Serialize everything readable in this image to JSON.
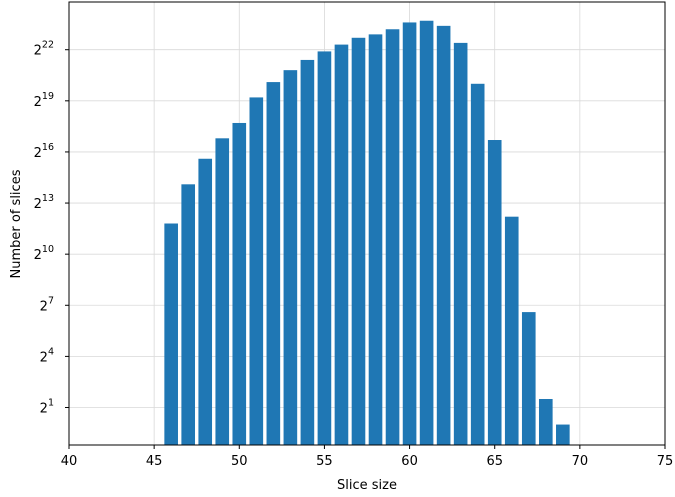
{
  "chart_data": {
    "type": "bar",
    "xlabel": "Slice size",
    "ylabel": "Number of slices",
    "xlim": [
      40,
      75
    ],
    "y_scale": "log2",
    "ylim_exponent": [
      -1.2,
      24.8
    ],
    "grid": true,
    "bar_color": "#1f77b4",
    "x_ticks": [
      "40",
      "45",
      "50",
      "55",
      "60",
      "65",
      "70",
      "75"
    ],
    "y_ticks": [
      {
        "base": "2",
        "exp": "1"
      },
      {
        "base": "2",
        "exp": "4"
      },
      {
        "base": "2",
        "exp": "7"
      },
      {
        "base": "2",
        "exp": "10"
      },
      {
        "base": "2",
        "exp": "13"
      },
      {
        "base": "2",
        "exp": "16"
      },
      {
        "base": "2",
        "exp": "19"
      },
      {
        "base": "2",
        "exp": "22"
      }
    ],
    "bars": [
      {
        "x": 46,
        "y_exp": 11.8
      },
      {
        "x": 47,
        "y_exp": 14.1
      },
      {
        "x": 48,
        "y_exp": 15.6
      },
      {
        "x": 49,
        "y_exp": 16.8
      },
      {
        "x": 50,
        "y_exp": 17.7
      },
      {
        "x": 51,
        "y_exp": 19.2
      },
      {
        "x": 52,
        "y_exp": 20.1
      },
      {
        "x": 53,
        "y_exp": 20.8
      },
      {
        "x": 54,
        "y_exp": 21.4
      },
      {
        "x": 55,
        "y_exp": 21.9
      },
      {
        "x": 56,
        "y_exp": 22.3
      },
      {
        "x": 57,
        "y_exp": 22.7
      },
      {
        "x": 58,
        "y_exp": 22.9
      },
      {
        "x": 59,
        "y_exp": 23.2
      },
      {
        "x": 60,
        "y_exp": 23.6
      },
      {
        "x": 61,
        "y_exp": 23.7
      },
      {
        "x": 62,
        "y_exp": 23.4
      },
      {
        "x": 63,
        "y_exp": 22.4
      },
      {
        "x": 64,
        "y_exp": 20.0
      },
      {
        "x": 65,
        "y_exp": 16.7
      },
      {
        "x": 66,
        "y_exp": 12.2
      },
      {
        "x": 67,
        "y_exp": 6.6
      },
      {
        "x": 68,
        "y_exp": 1.5
      },
      {
        "x": 69,
        "y_exp": 0.0
      }
    ]
  }
}
